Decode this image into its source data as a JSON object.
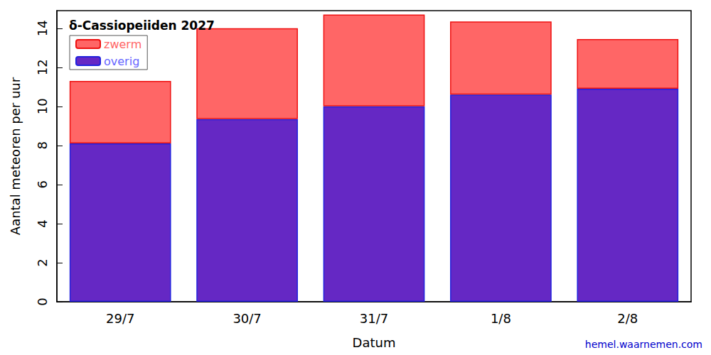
{
  "chart_data": {
    "type": "bar",
    "title": "δ-Cassiopeiiden 2027",
    "x_label": "Datum",
    "y_label": "Aantal meteoren per uur",
    "categories": [
      "29/7",
      "30/7",
      "31/7",
      "1/8",
      "2/8"
    ],
    "series": [
      {
        "name": "overig",
        "color": "#6528c4",
        "values": [
          8.1,
          9.35,
          10.0,
          10.6,
          10.9
        ]
      },
      {
        "name": "zwerm",
        "color": "#ff6666",
        "values": [
          3.2,
          4.65,
          4.7,
          3.75,
          2.55
        ]
      }
    ],
    "stacked": true,
    "legend": "upper left",
    "ylim": [
      0,
      14.9
    ],
    "yticks": [
      0,
      2,
      4,
      6,
      8,
      10,
      12,
      14
    ],
    "grid": false,
    "annotation": "hemel.waarnemen.com"
  }
}
